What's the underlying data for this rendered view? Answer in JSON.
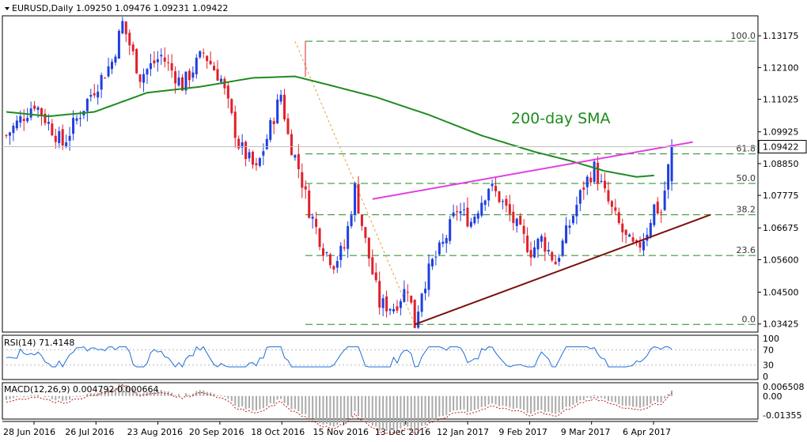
{
  "header": {
    "title": "EURUSD,Daily  1.09250 1.09476 1.09231 1.09422"
  },
  "annotations": {
    "sma_label": "200-day SMA"
  },
  "colors": {
    "bull": "#1f3fe0",
    "bear": "#e0202a",
    "sma": "#1e8c1e",
    "resistance": "#e040e0",
    "support": "#7a1010",
    "fib_line": "#1e8c1e",
    "fib_from": "#e8a040",
    "rsi": "#1e6ed8",
    "macd_signal": "#c01818",
    "macd_hist": "#aaaaaa",
    "grid": "#d8d8d8"
  },
  "chart_data": [
    {
      "type": "candlestick",
      "symbol": "EURUSD",
      "timeframe": "Daily",
      "last_ohlc": {
        "open": 1.0925,
        "high": 1.09476,
        "low": 1.09231,
        "close": 1.09422
      },
      "current_price_label": "1.09422",
      "current_price": 1.09422,
      "ylim": [
        1.0315,
        1.1385
      ],
      "y_ticks": [
        "1.13175",
        "1.12100",
        "1.11025",
        "1.09925",
        "1.08850",
        "1.07775",
        "1.06675",
        "1.05600",
        "1.04500",
        "1.03425"
      ],
      "y_tick_values": [
        1.13175,
        1.121,
        1.11025,
        1.09925,
        1.0885,
        1.07775,
        1.06675,
        1.056,
        1.045,
        1.03425
      ],
      "x_ticks": [
        "28 Jun 2016",
        "26 Jul 2016",
        "23 Aug 2016",
        "20 Sep 2016",
        "18 Oct 2016",
        "15 Nov 2016",
        "13 Dec 2016",
        "12 Jan 2017",
        "9 Feb 2017",
        "9 Mar 2017",
        "6 Apr 2017"
      ],
      "fibonacci": {
        "levels": [
          {
            "label": "100.0",
            "value": 1.1299
          },
          {
            "label": "61.8",
            "value": 1.0918
          },
          {
            "label": "50.0",
            "value": 1.0818
          },
          {
            "label": "38.2",
            "value": 1.0712
          },
          {
            "label": "23.6",
            "value": 1.0574
          },
          {
            "label": "0.0",
            "value": 1.0341
          }
        ],
        "start_date_index": 82,
        "start_value": 1.1299,
        "end_date_index": 116,
        "end_value": 1.0341
      },
      "trendlines": [
        {
          "name": "resistance",
          "from": [
            104,
            1.0765
          ],
          "to": [
            195,
            1.0958
          ]
        },
        {
          "name": "support",
          "from": [
            116,
            1.0341
          ],
          "to": [
            200,
            1.0712
          ]
        }
      ],
      "keypoints": [
        [
          0,
          1.098
        ],
        [
          8,
          1.109
        ],
        [
          16,
          1.095
        ],
        [
          24,
          1.112
        ],
        [
          30,
          1.123
        ],
        [
          33,
          1.136
        ],
        [
          38,
          1.118
        ],
        [
          44,
          1.125
        ],
        [
          50,
          1.115
        ],
        [
          56,
          1.126
        ],
        [
          61,
          1.117
        ],
        [
          66,
          1.095
        ],
        [
          71,
          1.086
        ],
        [
          78,
          1.112
        ],
        [
          80,
          1.098
        ],
        [
          83,
          1.087
        ],
        [
          86,
          1.073
        ],
        [
          90,
          1.06
        ],
        [
          93,
          1.055
        ],
        [
          96,
          1.06
        ],
        [
          99,
          1.08
        ],
        [
          102,
          1.062
        ],
        [
          106,
          1.041
        ],
        [
          110,
          1.04
        ],
        [
          114,
          1.047
        ],
        [
          116,
          1.0341
        ],
        [
          118,
          1.046
        ],
        [
          121,
          1.055
        ],
        [
          124,
          1.061
        ],
        [
          128,
          1.073
        ],
        [
          132,
          1.069
        ],
        [
          137,
          1.081
        ],
        [
          140,
          1.077
        ],
        [
          145,
          1.067
        ],
        [
          149,
          1.059
        ],
        [
          152,
          1.063
        ],
        [
          156,
          1.055
        ],
        [
          160,
          1.068
        ],
        [
          164,
          1.081
        ],
        [
          167,
          1.087
        ],
        [
          170,
          1.078
        ],
        [
          173,
          1.07
        ],
        [
          176,
          1.063
        ],
        [
          179,
          1.059
        ],
        [
          182,
          1.066
        ],
        [
          184,
          1.074
        ],
        [
          186,
          1.072
        ],
        [
          189,
          1.0945
        ]
      ],
      "sma_keypoints": [
        [
          0,
          1.106
        ],
        [
          12,
          1.1045
        ],
        [
          25,
          1.106
        ],
        [
          40,
          1.1125
        ],
        [
          55,
          1.1145
        ],
        [
          70,
          1.1175
        ],
        [
          82,
          1.118
        ],
        [
          92,
          1.115
        ],
        [
          105,
          1.111
        ],
        [
          120,
          1.105
        ],
        [
          135,
          1.098
        ],
        [
          150,
          1.0925
        ],
        [
          160,
          1.0895
        ],
        [
          170,
          1.086
        ],
        [
          179,
          1.084
        ],
        [
          184,
          1.0845
        ]
      ]
    },
    {
      "type": "line",
      "indicator": "RSI",
      "label": "RSI(14) 71.4148",
      "last_value": 71.4148,
      "ylim": [
        0,
        100
      ],
      "y_ticks": [
        "100",
        "70",
        "30",
        "0"
      ],
      "y_tick_values": [
        100,
        70,
        30,
        0
      ]
    },
    {
      "type": "bar",
      "indicator": "MACD",
      "label": "MACD(12,26,9) 0.004792 0.000664",
      "macd": 0.004792,
      "signal": 0.000664,
      "ylim": [
        -0.0142,
        0.0072
      ],
      "y_ticks": [
        "0.006508",
        "0.00",
        "-0.01355"
      ],
      "y_tick_values": [
        0.006508,
        0,
        -0.01355
      ]
    }
  ]
}
